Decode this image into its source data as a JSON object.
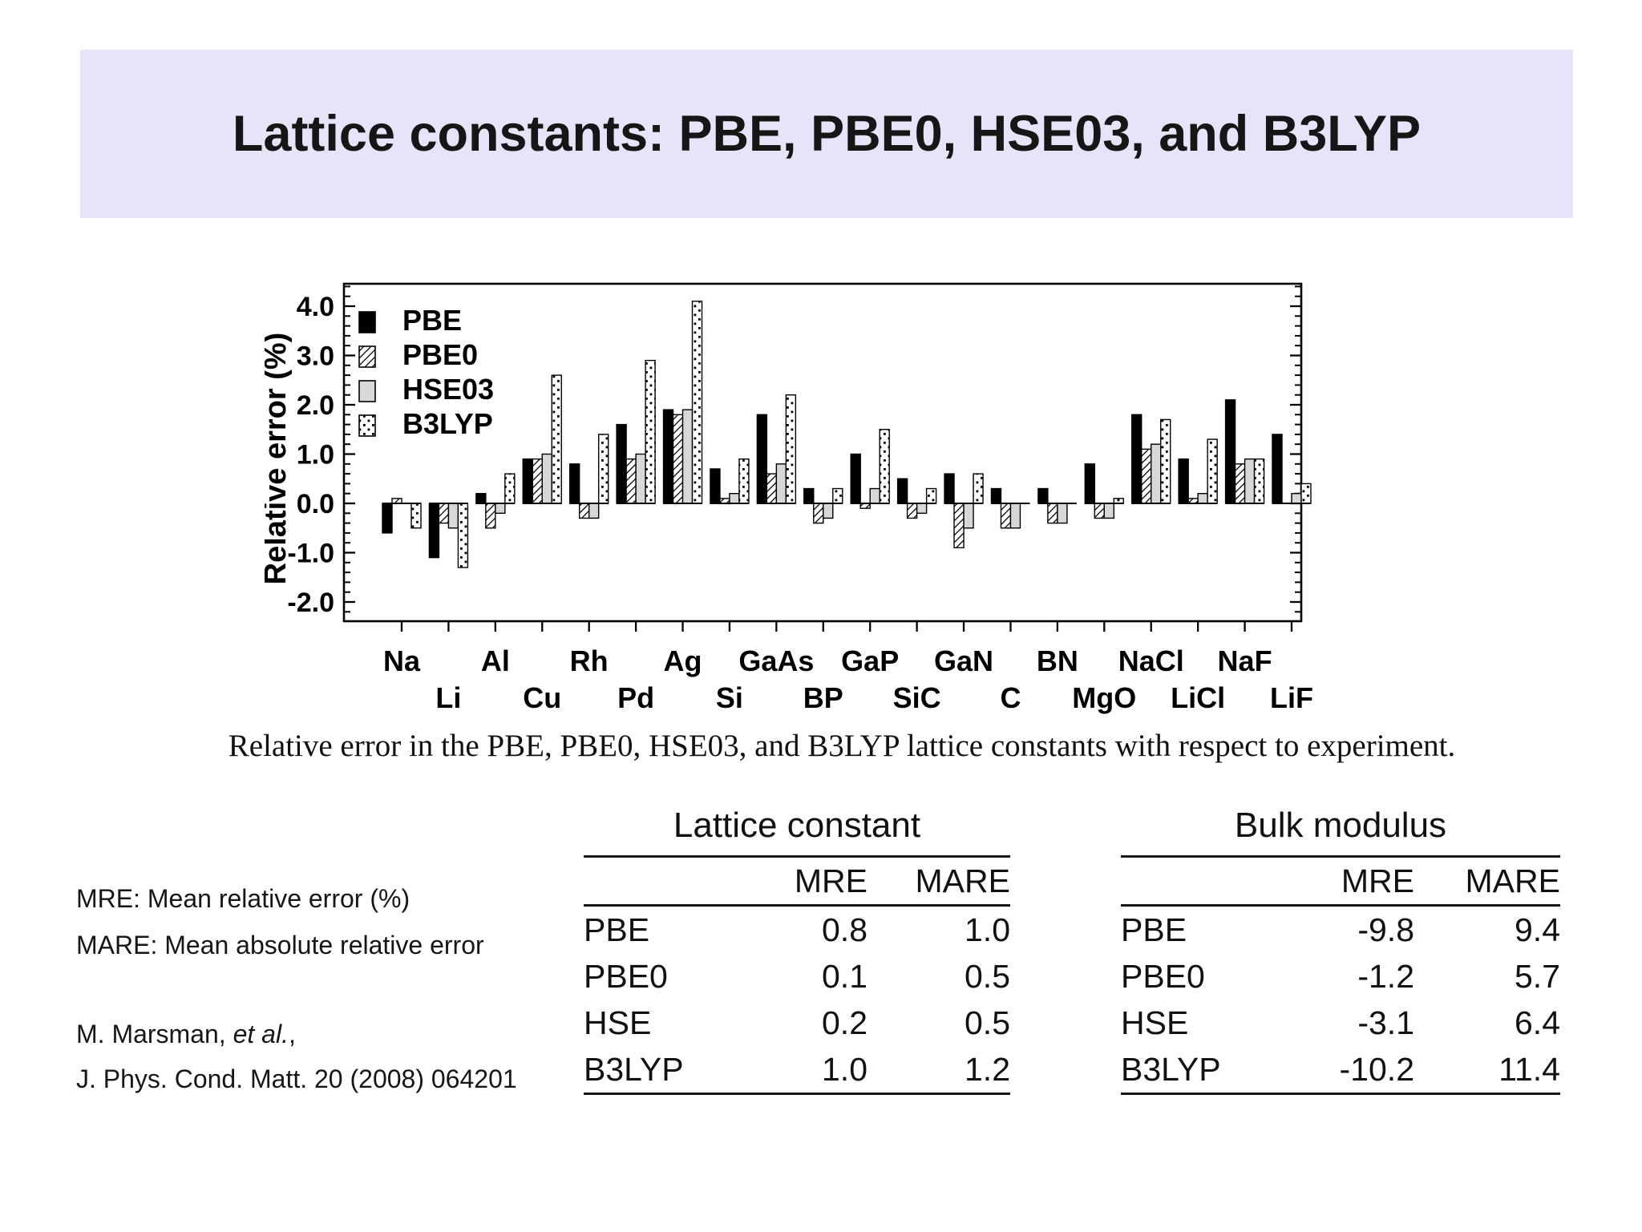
{
  "slide": {
    "title": "Lattice constants: PBE, PBE0, HSE03, and B3LYP",
    "caption": "Relative error in the PBE, PBE0, HSE03, and B3LYP lattice constants with respect to experiment.",
    "notes": {
      "mre_definition": "MRE: Mean relative error (%)",
      "mare_definition": "MARE: Mean absolute relative error"
    },
    "citation": {
      "authors": "M. Marsman, ",
      "etal": "et al.",
      "suffix": ",",
      "journal": "J. Phys. Cond. Matt. 20 (2008) 064201"
    }
  },
  "colors": {
    "banner_background": "#e5e4f8",
    "bar_black": "#000000",
    "bar_gray": "#d8d8d8",
    "text": "#111111"
  },
  "chart_data": {
    "type": "bar",
    "title": "",
    "xlabel": "",
    "ylabel": "Relative error (%)",
    "ylim": [
      -2.4,
      4.45
    ],
    "yticks": [
      4.0,
      3.0,
      2.0,
      1.0,
      0.0,
      -1.0,
      -2.0
    ],
    "ytick_labels": [
      "4.0",
      "3.0",
      "2.0",
      "1.0",
      "0.0",
      "-1.0",
      "-2.0"
    ],
    "minor_tick_step": 0.2,
    "grid": false,
    "legend_position": "top-left",
    "categories": [
      "Na",
      "Li",
      "Al",
      "Cu",
      "Rh",
      "Pd",
      "Ag",
      "Si",
      "GaAs",
      "BP",
      "GaP",
      "SiC",
      "GaN",
      "C",
      "BN",
      "MgO",
      "NaCl",
      "LiCl",
      "NaF",
      "LiF"
    ],
    "series": [
      {
        "name": "PBE",
        "style": "solid-black",
        "values": [
          -0.6,
          -1.1,
          0.2,
          0.9,
          0.8,
          1.6,
          1.9,
          0.7,
          1.8,
          0.3,
          1.0,
          0.5,
          0.6,
          0.3,
          0.3,
          0.8,
          1.8,
          0.9,
          2.1,
          1.4
        ]
      },
      {
        "name": "PBE0",
        "style": "hatch",
        "values": [
          0.1,
          -0.4,
          -0.5,
          0.9,
          -0.3,
          0.9,
          1.8,
          0.1,
          0.6,
          -0.4,
          -0.1,
          -0.3,
          -0.9,
          -0.5,
          -0.4,
          -0.3,
          1.1,
          0.1,
          0.8,
          0.0
        ]
      },
      {
        "name": "HSE03",
        "style": "gray",
        "values": [
          0.0,
          -0.5,
          -0.2,
          1.0,
          -0.3,
          1.0,
          1.9,
          0.2,
          0.8,
          -0.3,
          0.3,
          -0.2,
          -0.5,
          -0.5,
          -0.4,
          -0.3,
          1.2,
          0.2,
          0.9,
          0.2
        ]
      },
      {
        "name": "B3LYP",
        "style": "dots",
        "values": [
          -0.5,
          -1.3,
          0.6,
          2.6,
          1.4,
          2.9,
          4.1,
          0.9,
          2.2,
          0.3,
          1.5,
          0.3,
          0.6,
          0.0,
          0.0,
          0.1,
          1.7,
          1.3,
          0.9,
          0.4
        ]
      }
    ]
  },
  "tables": [
    {
      "title": "Lattice constant",
      "columns": [
        "",
        "MRE",
        "MARE"
      ],
      "rows": [
        [
          "PBE",
          "0.8",
          "1.0"
        ],
        [
          "PBE0",
          "0.1",
          "0.5"
        ],
        [
          "HSE",
          "0.2",
          "0.5"
        ],
        [
          "B3LYP",
          "1.0",
          "1.2"
        ]
      ]
    },
    {
      "title": "Bulk modulus",
      "columns": [
        "",
        "MRE",
        "MARE"
      ],
      "rows": [
        [
          "PBE",
          "-9.8",
          "9.4"
        ],
        [
          "PBE0",
          "-1.2",
          "5.7"
        ],
        [
          "HSE",
          "-3.1",
          "6.4"
        ],
        [
          "B3LYP",
          "-10.2",
          "11.4"
        ]
      ]
    }
  ]
}
